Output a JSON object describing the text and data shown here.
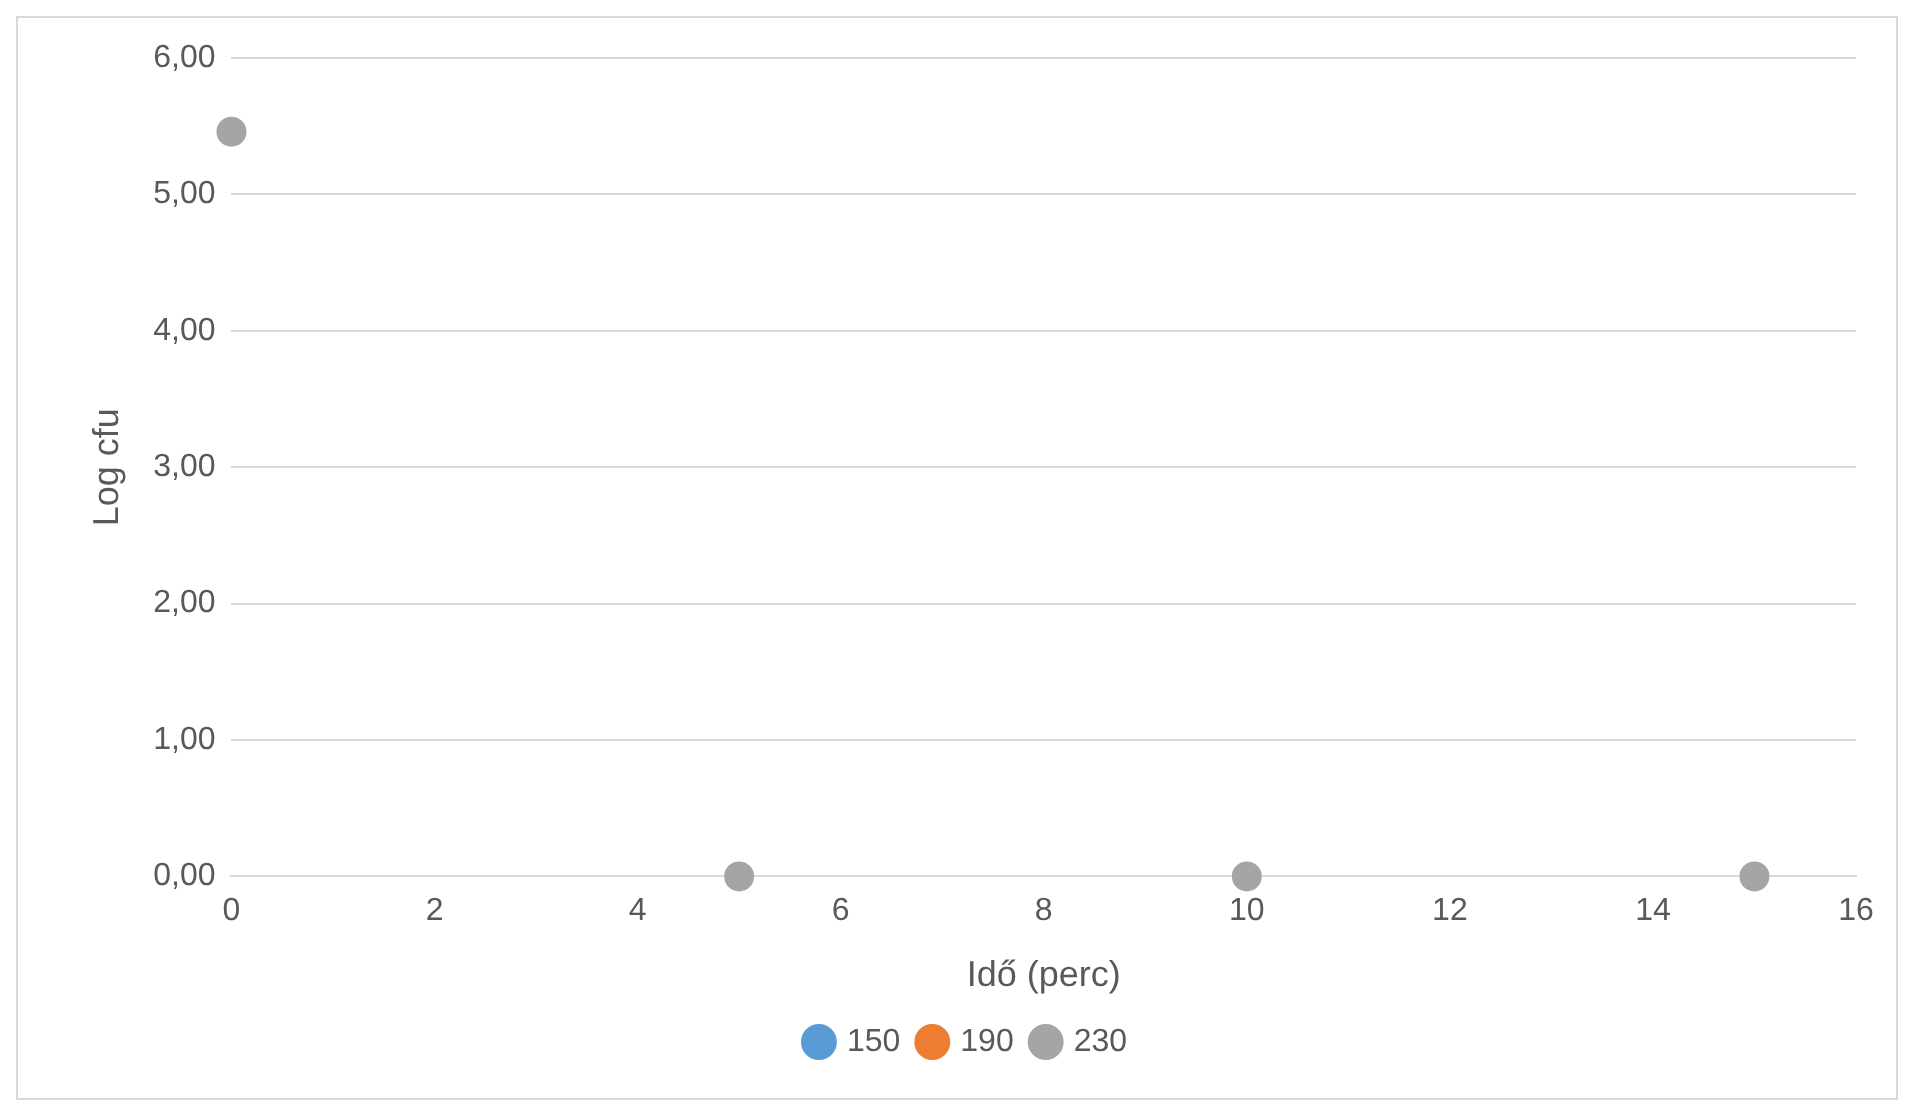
{
  "chart_data": {
    "type": "scatter",
    "xlabel": "Idő (perc)",
    "ylabel": "Log cfu",
    "x": [
      0,
      5,
      10,
      15
    ],
    "series": [
      {
        "name": "150",
        "color": "#5b9bd5",
        "values": [
          null,
          null,
          null,
          null
        ]
      },
      {
        "name": "190",
        "color": "#ed7d31",
        "values": [
          null,
          null,
          null,
          null
        ]
      },
      {
        "name": "230",
        "color": "#a5a5a5",
        "values": [
          5.46,
          0,
          0,
          0
        ]
      }
    ],
    "xlim": [
      0,
      16
    ],
    "xticks": [
      0,
      2,
      4,
      6,
      8,
      10,
      12,
      14,
      16
    ],
    "ylim": [
      0,
      6
    ],
    "yticks": [
      {
        "value": 0,
        "label": "0,00"
      },
      {
        "value": 1,
        "label": "1,00"
      },
      {
        "value": 2,
        "label": "2,00"
      },
      {
        "value": 3,
        "label": "3,00"
      },
      {
        "value": 4,
        "label": "4,00"
      },
      {
        "value": 5,
        "label": "5,00"
      },
      {
        "value": 6,
        "label": "6,00"
      }
    ],
    "grid": "y",
    "legend": "bottom",
    "marker": "circle"
  }
}
